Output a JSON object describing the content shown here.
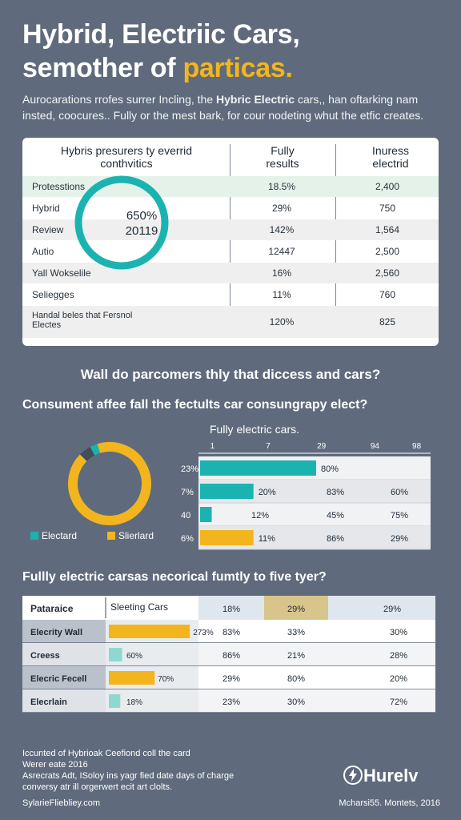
{
  "header": {
    "title_line1": "Hybrid, Electriic Cars,",
    "title_line2_prefix": "semother of ",
    "title_line2_highlight": "particas.",
    "intro_pre": "Aurocarations rrofes surrer Incling, the ",
    "intro_bold": "Hybric Electric",
    "intro_post": " cars,, han oftarking nam insted, coocures.. Fully or the mest bark, for cour nodeting whut the etfic creates."
  },
  "colors": {
    "teal": "#1bb3b0",
    "yellow": "#f2b51e",
    "bg": "#5f6b7c",
    "highlight": "#e4f2ea"
  },
  "summary_table": {
    "headers": [
      "Hybris presurers ty everrid conthvitics",
      "Fully results",
      "Inuress electrid"
    ],
    "rows": [
      {
        "label": "Protesstions",
        "c1": "18.5%",
        "c2": "2,400"
      },
      {
        "label": "Hybrid",
        "c1": "29%",
        "c2": "750"
      },
      {
        "label": "Review",
        "c1": "142%",
        "c2": "1,564"
      },
      {
        "label": "Autio",
        "c1": "12447",
        "c2": "2,500"
      },
      {
        "label": "Yall Wokselile",
        "c1": "16%",
        "c2": "2,560"
      },
      {
        "label": "Seliegges",
        "c1": "11%",
        "c2": "760"
      },
      {
        "label": "Handal beles that Fersnol Electes",
        "c1": "120%",
        "c2": "825"
      }
    ],
    "donut_label_line1": "650%",
    "donut_label_line2": "20119"
  },
  "questions": {
    "q1": "Wall do parcomers thly that diccess and cars?",
    "q2": "Consument affee fall the fectults car consungrapy elect?",
    "q3": "Fullly electric carsas necorical fumtly to five tyer?"
  },
  "chart_data": [
    {
      "type": "pie",
      "title": "",
      "slices": [
        {
          "label": "Electard",
          "value": 3,
          "color": "#1bb3b0"
        },
        {
          "label": "Slierlard",
          "value": 92,
          "color": "#f2b51e"
        },
        {
          "label": "",
          "value": 5,
          "color": "#444c57"
        }
      ],
      "legend": [
        "Electard",
        "Slierlard"
      ],
      "legend_position": "bottom"
    },
    {
      "type": "bar",
      "title": "Fully electric cars.",
      "orientation": "horizontal",
      "x_ticks": [
        "1",
        "7",
        "29",
        "94",
        "98"
      ],
      "rows": [
        {
          "label": "23%",
          "value": 50,
          "color": "#1bb3b0",
          "cells": [
            "80%",
            "",
            ""
          ]
        },
        {
          "label": "7%",
          "value": 23,
          "color": "#1bb3b0",
          "cells": [
            "20%",
            "83%",
            "60%"
          ]
        },
        {
          "label": "40",
          "value": 5,
          "color": "#1bb3b0",
          "cells": [
            "12%",
            "45%",
            "75%"
          ]
        },
        {
          "label": "6%",
          "value": 23,
          "color": "#f2b51e",
          "cells": [
            "11%",
            "86%",
            "29%"
          ]
        }
      ],
      "xlim": [
        0,
        100
      ]
    },
    {
      "type": "table",
      "headers": [
        "Pataraice",
        "Sleeting Cars",
        "18%",
        "29%",
        "",
        "29%"
      ],
      "rows": [
        {
          "label": "Elecrity Wall",
          "bar_label": "273%",
          "bar_value": 92,
          "color": "#f2b51e",
          "cells": [
            "83%",
            "33%",
            "30%"
          ]
        },
        {
          "label": "Creess",
          "bar_label": "60%",
          "bar_value": 15,
          "color": "#8fd8d2",
          "cells": [
            "86%",
            "21%",
            "28%"
          ]
        },
        {
          "label": "Elecric Fecell",
          "bar_label": "70%",
          "bar_value": 52,
          "color": "#f2b51e",
          "cells": [
            "29%",
            "80%",
            "20%"
          ]
        },
        {
          "label": "Elecrlain",
          "bar_label": "18%",
          "bar_value": 13,
          "color": "#8fd8d2",
          "cells": [
            "23%",
            "30%",
            "72%"
          ]
        }
      ]
    }
  ],
  "footer": {
    "line1": "Iccunted of Hybrioak Ceefiond coll the card",
    "line2": "Werer eate 2016",
    "line3": "Asrecrats Adt, ISoloy ins yagr fied date days of charge",
    "line4": "conversy atr ill orgerwert ecit art clolts.",
    "left": "SylarieFliebliey.com",
    "right": "Mcharsi55. Montets, 2016",
    "brand": "Hurelv"
  }
}
